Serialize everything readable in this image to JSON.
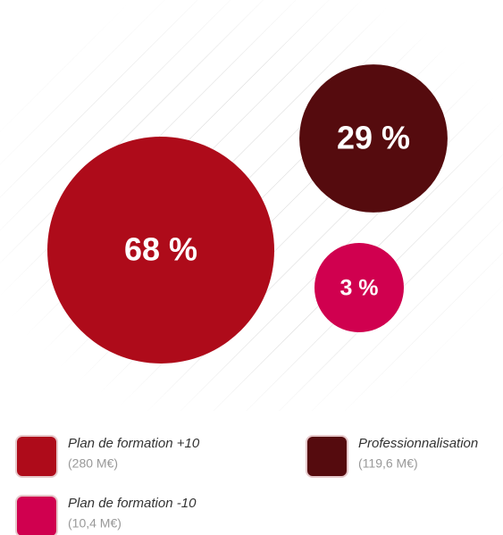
{
  "chart_data": {
    "type": "bubble",
    "categories": [
      "Plan de formation +10",
      "Professionnalisation",
      "Plan de formation -10"
    ],
    "details": [
      "(280 M€)",
      "(119,6 M€)",
      "(10,4 M€)"
    ],
    "values": [
      68,
      29,
      3
    ],
    "value_labels": [
      "68 %",
      "29 %",
      "3 %"
    ],
    "colors": [
      "#ae0b1a",
      "#550b0e",
      "#d0004f"
    ]
  }
}
